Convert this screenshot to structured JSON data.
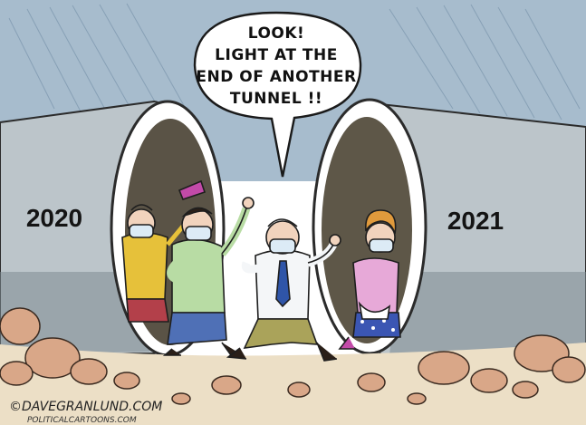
{
  "caption": {
    "line1": "LOOK!",
    "line2": "LIGHT AT THE",
    "line3": "END OF ANOTHER",
    "line4": "TUNNEL !!"
  },
  "labels": {
    "left_tunnel": "2020",
    "right_tunnel": "2021"
  },
  "credit": {
    "artist": "©DAVEGRANLUND.COM",
    "syndicate": "POLITICALCARTOONS.COM"
  },
  "colors": {
    "sky": "#9fb6c9",
    "pipe": "#b9c2c7",
    "pipe_shadow": "#6e7a80",
    "ground": "#e8dcc5",
    "rock": "#d9a889",
    "shirt_yellow": "#e8c23a",
    "shirt_green": "#b8dca3",
    "shirt_white": "#f4f6f8",
    "shirt_pink": "#e7a9d8",
    "tie_blue": "#2f55a8",
    "pants_blue": "#4e6fb5",
    "pants_olive": "#a9a258",
    "hair_orange": "#e09a3c",
    "mask_blue": "#dbeaf5"
  }
}
